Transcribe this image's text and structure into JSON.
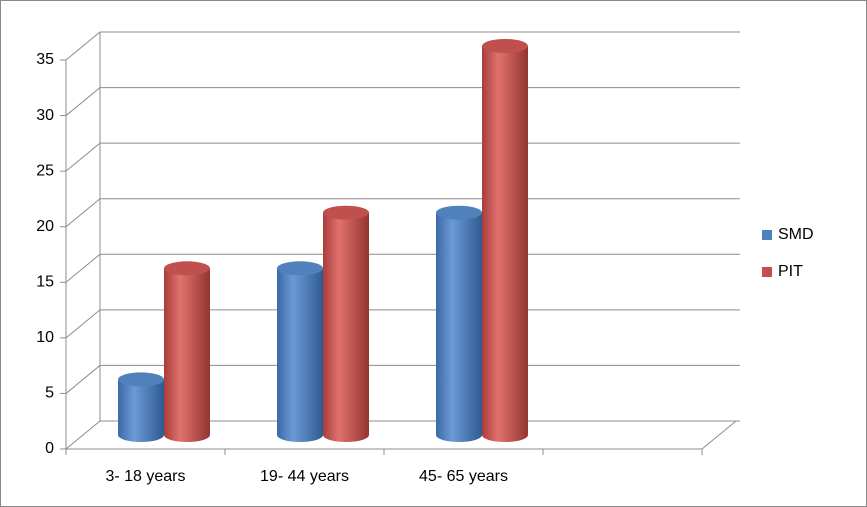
{
  "chart_data": {
    "type": "bar3d",
    "categories": [
      "3- 18 years",
      "19- 44 years",
      "45- 65 years",
      null
    ],
    "series": [
      {
        "name": "SMD",
        "color": "#4f81bd",
        "values": [
          5,
          15,
          20,
          null
        ]
      },
      {
        "name": "PIT",
        "color": "#c0504d",
        "values": [
          15,
          20,
          35,
          null
        ]
      }
    ],
    "ylim": [
      0,
      35
    ],
    "yticks": [
      0,
      5,
      10,
      15,
      20,
      25,
      30,
      35
    ],
    "grid": true,
    "legend": "right"
  }
}
